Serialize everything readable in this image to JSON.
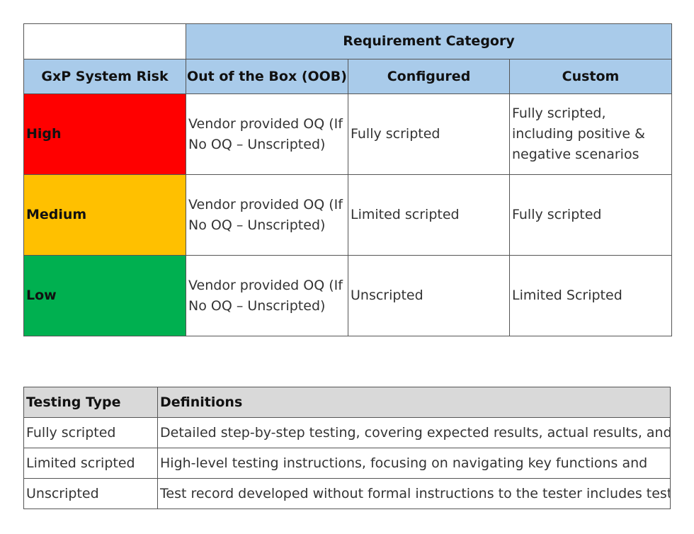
{
  "risk_table": {
    "top_header": "Requirement Category",
    "column_headers": [
      "GxP System Risk",
      "Out of the Box (OOB)",
      "Configured",
      "Custom"
    ],
    "rows": [
      {
        "risk": "High",
        "color": "#ff0000",
        "oob": "Vendor provided OQ (If No OQ – Unscripted)",
        "configured": "Fully scripted",
        "custom": "Fully scripted, including positive & negative scenarios"
      },
      {
        "risk": "Medium",
        "color": "#ffc000",
        "oob": "Vendor provided OQ (If No OQ – Unscripted)",
        "configured": "Limited scripted",
        "custom": "Fully scripted"
      },
      {
        "risk": "Low",
        "color": "#00b050",
        "oob": "Vendor provided OQ (If No OQ – Unscripted)",
        "configured": "Unscripted",
        "custom": "Limited Scripted"
      }
    ],
    "header_color": "#a9cbea"
  },
  "definitions_table": {
    "headers": [
      "Testing Type",
      "Definitions"
    ],
    "rows": [
      {
        "type": "Fully scripted",
        "definition": "Detailed step-by-step testing, covering expected results, actual results, and"
      },
      {
        "type": "Limited scripted",
        "definition": "High-level testing instructions, focusing on navigating key functions and"
      },
      {
        "type": "Unscripted",
        "definition": "Test record developed without formal instructions to the tester includes test"
      }
    ],
    "header_color": "#d9d9d9"
  }
}
